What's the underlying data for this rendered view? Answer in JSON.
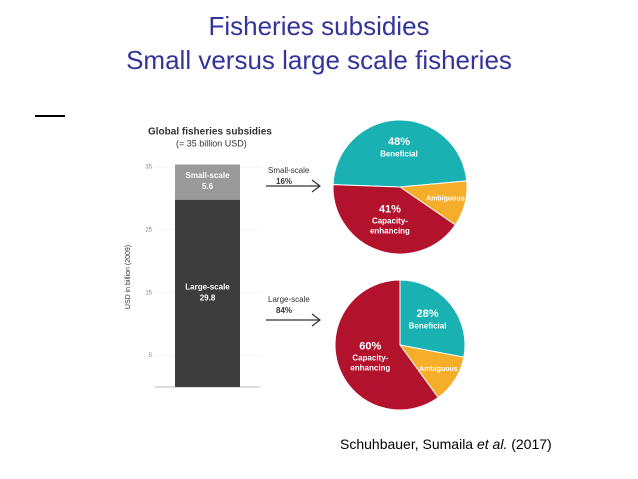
{
  "title": [
    "Fisheries subsidies",
    "Small versus large scale fisheries"
  ],
  "citation": {
    "authors": "Schuhbauer, Sumaila",
    "etal": "et al.",
    "year": "(2017)"
  },
  "chart_data": [
    {
      "type": "bar",
      "stacked": true,
      "title": "Global fisheries subsidies",
      "subtitle": "(= 35 billion USD)",
      "y_label": "USD in billion (2009)",
      "categories": [
        null
      ],
      "series": [
        {
          "name": "Large-scale",
          "color": "#3d3d3d",
          "values": [
            29.8
          ]
        },
        {
          "name": "Small-scale",
          "color": "#9a9a9a",
          "values": [
            5.6
          ]
        }
      ],
      "ylim": [
        0,
        35
      ],
      "yticks": [
        5,
        15,
        25,
        35
      ]
    },
    {
      "type": "pie",
      "title": "Small-scale",
      "subtitle": "16%",
      "categories": [
        "Beneficial",
        "Ambiguous",
        "Capacity-enhancing"
      ],
      "values": [
        48,
        11,
        41
      ],
      "value_labels": [
        "48%",
        null,
        "41%"
      ],
      "colors": [
        "#1ab1b3",
        "#f6ad2a",
        "#b3122d"
      ]
    },
    {
      "type": "pie",
      "title": "Large-scale",
      "subtitle": "84%",
      "categories": [
        "Beneficial",
        "Ambiguous",
        "Capacity-enhancing"
      ],
      "values": [
        28,
        12,
        60
      ],
      "value_labels": [
        "28%",
        null,
        "60%"
      ],
      "colors": [
        "#1ab1b3",
        "#f6ad2a",
        "#b3122d"
      ]
    }
  ]
}
